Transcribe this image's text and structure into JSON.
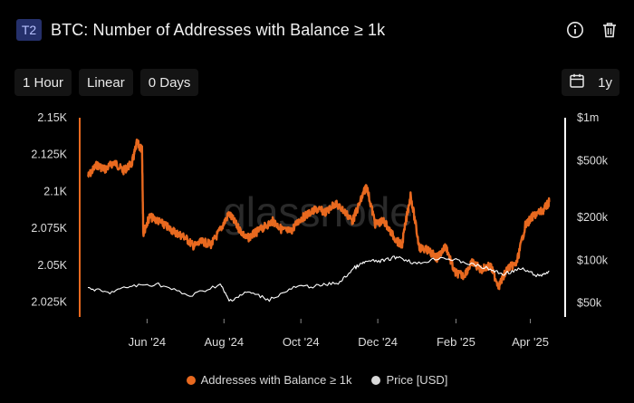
{
  "header": {
    "tier_badge": "T2",
    "title": "BTC: Number of Addresses with Balance ≥ 1k"
  },
  "toolbar": {
    "resolution": "1 Hour",
    "scale": "Linear",
    "smoothing": "0 Days",
    "range": "1y"
  },
  "icons": {
    "info": "info-icon",
    "delete": "trash-icon",
    "calendar": "calendar-icon"
  },
  "watermark": "glassnode",
  "chart_data": {
    "type": "line",
    "x_ticks": [
      "Jun '24",
      "Aug '24",
      "Oct '24",
      "Dec '24",
      "Feb '25",
      "Apr '25"
    ],
    "y_left_ticks": [
      "2.025K",
      "2.05K",
      "2.075K",
      "2.1K",
      "2.125K",
      "2.15K"
    ],
    "y_left_range": [
      2015,
      2150
    ],
    "y_right_ticks": [
      "$50k",
      "$100k",
      "$200k",
      "$500k",
      "$1m"
    ],
    "y_right_scale": "log",
    "y_right_range": [
      40000,
      1000000
    ],
    "series": [
      {
        "name": "Addresses with Balance ≥ 1k",
        "color": "#e8691f",
        "axis": "left",
        "points": [
          [
            "2024-04-15",
            2110
          ],
          [
            "2024-04-22",
            2118
          ],
          [
            "2024-04-29",
            2115
          ],
          [
            "2024-05-06",
            2120
          ],
          [
            "2024-05-13",
            2114
          ],
          [
            "2024-05-20",
            2119
          ],
          [
            "2024-05-24",
            2133
          ],
          [
            "2024-05-28",
            2128
          ],
          [
            "2024-05-29",
            2072
          ],
          [
            "2024-06-03",
            2083
          ],
          [
            "2024-06-10",
            2080
          ],
          [
            "2024-06-17",
            2076
          ],
          [
            "2024-06-24",
            2072
          ],
          [
            "2024-07-01",
            2069
          ],
          [
            "2024-07-08",
            2063
          ],
          [
            "2024-07-15",
            2066
          ],
          [
            "2024-07-22",
            2064
          ],
          [
            "2024-07-29",
            2074
          ],
          [
            "2024-08-05",
            2085
          ],
          [
            "2024-08-12",
            2076
          ],
          [
            "2024-08-19",
            2068
          ],
          [
            "2024-08-26",
            2072
          ],
          [
            "2024-09-02",
            2076
          ],
          [
            "2024-09-09",
            2080
          ],
          [
            "2024-09-16",
            2074
          ],
          [
            "2024-09-23",
            2073
          ],
          [
            "2024-09-30",
            2081
          ],
          [
            "2024-10-07",
            2085
          ],
          [
            "2024-10-14",
            2088
          ],
          [
            "2024-10-21",
            2086
          ],
          [
            "2024-10-28",
            2092
          ],
          [
            "2024-11-04",
            2087
          ],
          [
            "2024-11-11",
            2080
          ],
          [
            "2024-11-18",
            2095
          ],
          [
            "2024-11-22",
            2104
          ],
          [
            "2024-11-29",
            2078
          ],
          [
            "2024-12-06",
            2080
          ],
          [
            "2024-12-13",
            2070
          ],
          [
            "2024-12-20",
            2063
          ],
          [
            "2024-12-27",
            2098
          ],
          [
            "2025-01-03",
            2062
          ],
          [
            "2025-01-10",
            2060
          ],
          [
            "2025-01-17",
            2055
          ],
          [
            "2025-01-24",
            2063
          ],
          [
            "2025-01-31",
            2045
          ],
          [
            "2025-02-07",
            2043
          ],
          [
            "2025-02-14",
            2052
          ],
          [
            "2025-02-21",
            2047
          ],
          [
            "2025-02-28",
            2050
          ],
          [
            "2025-03-07",
            2036
          ],
          [
            "2025-03-14",
            2048
          ],
          [
            "2025-03-21",
            2051
          ],
          [
            "2025-03-28",
            2077
          ],
          [
            "2025-04-04",
            2084
          ],
          [
            "2025-04-11",
            2087
          ],
          [
            "2025-04-16",
            2093
          ]
        ]
      },
      {
        "name": "Price [USD]",
        "color": "#ffffff",
        "axis": "right",
        "points": [
          [
            "2024-04-15",
            64000
          ],
          [
            "2024-05-01",
            59000
          ],
          [
            "2024-05-20",
            66000
          ],
          [
            "2024-06-10",
            68000
          ],
          [
            "2024-07-05",
            56000
          ],
          [
            "2024-07-29",
            68000
          ],
          [
            "2024-08-05",
            52000
          ],
          [
            "2024-08-20",
            60000
          ],
          [
            "2024-09-06",
            53000
          ],
          [
            "2024-09-27",
            65000
          ],
          [
            "2024-10-15",
            66000
          ],
          [
            "2024-11-01",
            70000
          ],
          [
            "2024-11-12",
            88000
          ],
          [
            "2024-11-22",
            98000
          ],
          [
            "2024-12-05",
            99000
          ],
          [
            "2024-12-17",
            106000
          ],
          [
            "2025-01-01",
            94000
          ],
          [
            "2025-01-20",
            105000
          ],
          [
            "2025-02-05",
            98000
          ],
          [
            "2025-02-25",
            88000
          ],
          [
            "2025-03-10",
            80000
          ],
          [
            "2025-03-25",
            87000
          ],
          [
            "2025-04-08",
            77000
          ],
          [
            "2025-04-16",
            84000
          ]
        ]
      }
    ]
  }
}
